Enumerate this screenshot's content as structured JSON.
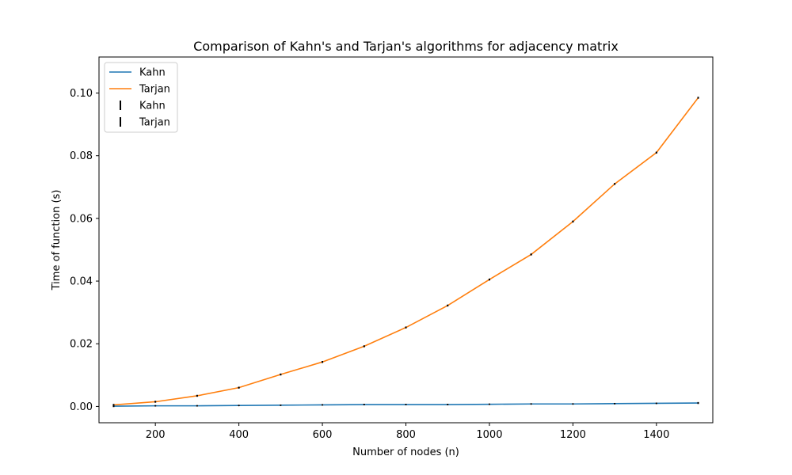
{
  "chart_data": {
    "type": "line",
    "title": "Comparison of Kahn's and Tarjan's algorithms for adjacency matrix",
    "xlabel": "Number of nodes (n)",
    "ylabel": "Time of function (s)",
    "xlim": [
      65,
      1535
    ],
    "ylim": [
      -0.0052,
      0.1115
    ],
    "x": [
      100,
      200,
      300,
      400,
      500,
      600,
      700,
      800,
      900,
      1000,
      1100,
      1200,
      1300,
      1400,
      1500
    ],
    "xticks": [
      200,
      400,
      600,
      800,
      1000,
      1200,
      1400
    ],
    "yticks": [
      0.0,
      0.02,
      0.04,
      0.06,
      0.08,
      0.1
    ],
    "ytick_labels": [
      "0.00",
      "0.02",
      "0.04",
      "0.06",
      "0.08",
      "0.10"
    ],
    "grid": false,
    "legend_position": "top-left",
    "series": [
      {
        "name": "Kahn",
        "color": "#1f77b4",
        "values": [
          0.0001,
          0.0002,
          0.0002,
          0.0003,
          0.0004,
          0.0005,
          0.0006,
          0.0006,
          0.0006,
          0.0007,
          0.0008,
          0.0008,
          0.0009,
          0.001,
          0.0011
        ],
        "errors": [
          0.0004,
          0.0002,
          0.0002,
          0.0002,
          0.0002,
          0.0002,
          0.0002,
          0.0002,
          0.0002,
          0.0002,
          0.0002,
          0.0002,
          0.0002,
          0.0002,
          0.0003
        ]
      },
      {
        "name": "Tarjan",
        "color": "#ff7f0e",
        "values": [
          0.0005,
          0.0015,
          0.0034,
          0.006,
          0.0102,
          0.0142,
          0.0192,
          0.0252,
          0.0322,
          0.0405,
          0.0485,
          0.059,
          0.071,
          0.081,
          0.0985
        ],
        "errors": [
          0.0003,
          0.0003,
          0.0004,
          0.0004,
          0.0005,
          0.0006,
          0.0008,
          0.0006,
          0.0012,
          0.0008,
          0.0012,
          0.0012,
          0.0022,
          0.0015,
          0.008
        ]
      }
    ],
    "legend": [
      {
        "label": "Kahn",
        "kind": "line",
        "color": "#1f77b4"
      },
      {
        "label": "Tarjan",
        "kind": "line",
        "color": "#ff7f0e"
      },
      {
        "label": "Kahn",
        "kind": "errorbar",
        "color": "#000000"
      },
      {
        "label": "Tarjan",
        "kind": "errorbar",
        "color": "#000000"
      }
    ]
  }
}
